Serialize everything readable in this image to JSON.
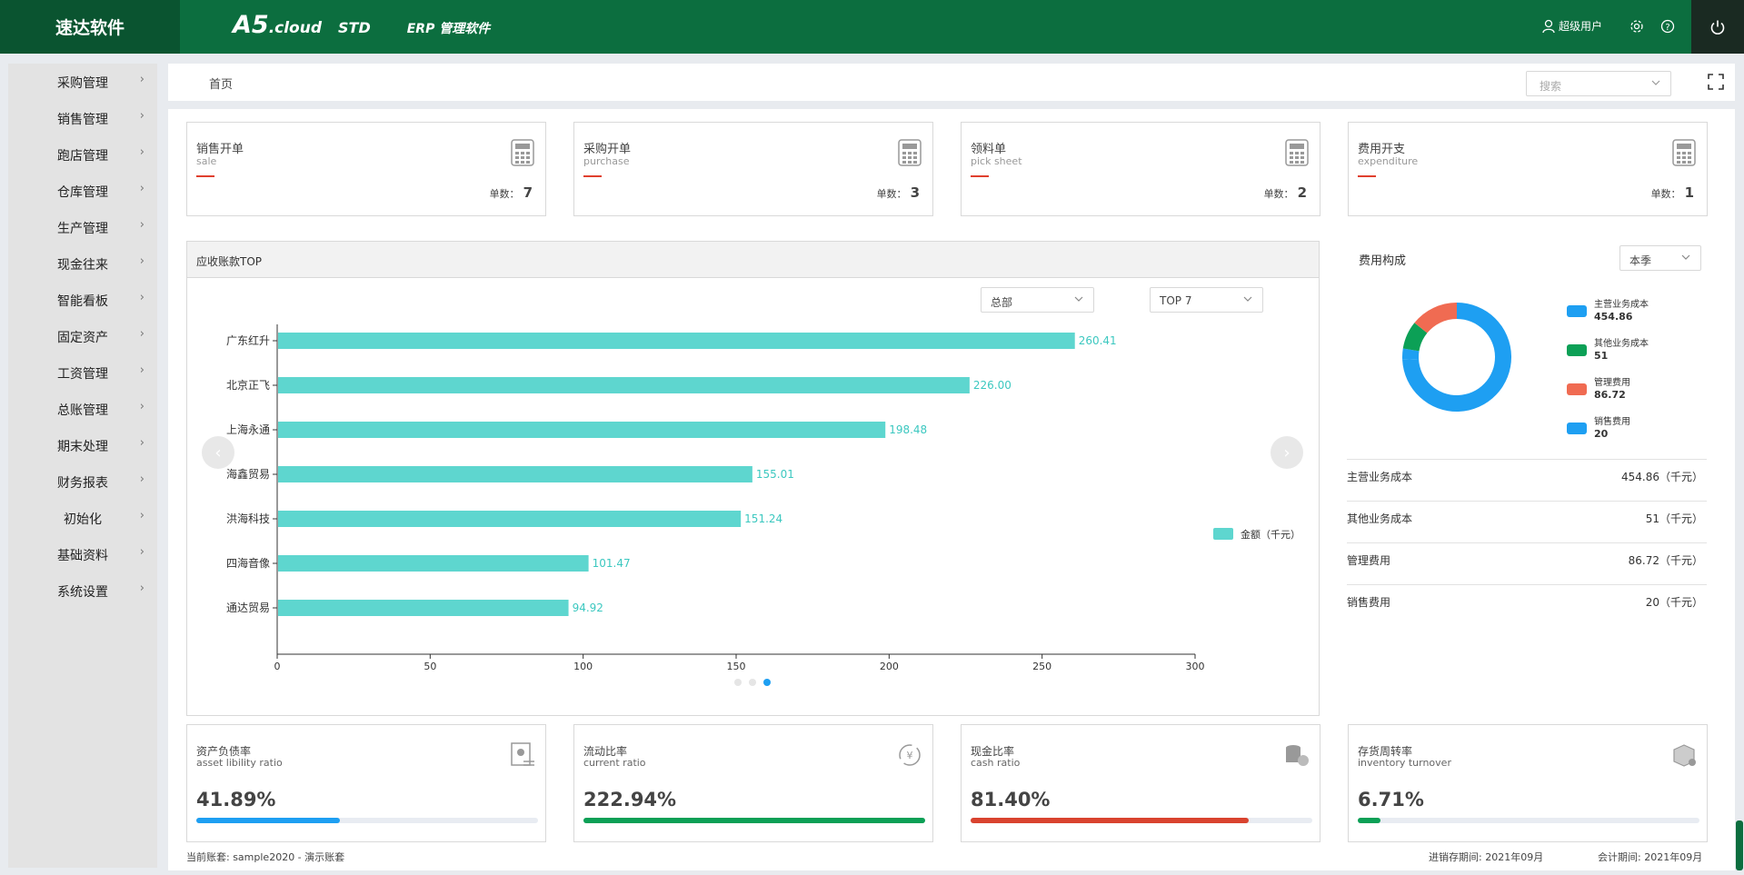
{
  "header": {
    "logo": "速达软件",
    "brand_a5": "A5",
    "brand_cloud": ".cloud",
    "brand_std": "STD",
    "brand_erp": "ERP 管理软件",
    "user": "超级用户"
  },
  "sidebar": {
    "items": [
      {
        "label": "采购管理"
      },
      {
        "label": "销售管理"
      },
      {
        "label": "跑店管理"
      },
      {
        "label": "仓库管理"
      },
      {
        "label": "生产管理"
      },
      {
        "label": "现金往来"
      },
      {
        "label": "智能看板"
      },
      {
        "label": "固定资产"
      },
      {
        "label": "工资管理"
      },
      {
        "label": "总账管理"
      },
      {
        "label": "期末处理"
      },
      {
        "label": "财务报表"
      },
      {
        "label": "初始化"
      },
      {
        "label": "基础资料"
      },
      {
        "label": "系统设置"
      }
    ]
  },
  "breadcrumb": {
    "home": "首页"
  },
  "search": {
    "placeholder": "搜索"
  },
  "stats": [
    {
      "title": "销售开单",
      "subtitle": "sale",
      "count_label": "单数：",
      "count": "7"
    },
    {
      "title": "采购开单",
      "subtitle": "purchase",
      "count_label": "单数：",
      "count": "3"
    },
    {
      "title": "领料单",
      "subtitle": "pick sheet",
      "count_label": "单数：",
      "count": "2"
    },
    {
      "title": "费用开支",
      "subtitle": "expenditure",
      "count_label": "单数：",
      "count": "1"
    }
  ],
  "receivables": {
    "title": "应收账款TOP",
    "filter_scope": "总部",
    "filter_top": "TOP 7",
    "legend": "金额（千元）"
  },
  "chart_data": {
    "type": "bar",
    "orientation": "horizontal",
    "categories": [
      "广东红升",
      "北京正飞",
      "上海永通",
      "海鑫贸易",
      "洪海科技",
      "四海音像",
      "通达贸易"
    ],
    "series": [
      {
        "name": "金额（千元）",
        "values": [
          260.41,
          226.0,
          198.48,
          155.01,
          151.24,
          101.47,
          94.92
        ]
      }
    ],
    "value_labels": [
      "260.41",
      "226.00",
      "198.48",
      "155.01",
      "151.24",
      "101.47",
      "94.92"
    ],
    "xticks": [
      "0",
      "50",
      "100",
      "150",
      "200",
      "250",
      "300"
    ],
    "xlim": [
      0,
      300
    ],
    "color": "#5ed6cf",
    "legend_position": "right"
  },
  "cost": {
    "title": "费用构成",
    "period": "本季",
    "items": [
      {
        "name": "主营业务成本",
        "value": "454.86",
        "row_value": "454.86（千元）",
        "num": 454.86,
        "color": "#1e9ff2"
      },
      {
        "name": "其他业务成本",
        "value": "51",
        "row_value": "51（千元）",
        "num": 51,
        "color": "#0ca056"
      },
      {
        "name": "管理费用",
        "value": "86.72",
        "row_value": "86.72（千元）",
        "num": 86.72,
        "color": "#f06b52"
      },
      {
        "name": "销售费用",
        "value": "20",
        "row_value": "20（千元）",
        "num": 20,
        "color": "#1e9ff2"
      }
    ]
  },
  "kpis": [
    {
      "title": "资产负债率",
      "subtitle": "asset libility ratio",
      "value": "41.89%",
      "fill": 0.42,
      "color": "#1e9ff2"
    },
    {
      "title": "流动比率",
      "subtitle": "current ratio",
      "value": "222.94%",
      "fill": 1.0,
      "color": "#0ca056"
    },
    {
      "title": "现金比率",
      "subtitle": "cash ratio",
      "value": "81.40%",
      "fill": 0.814,
      "color": "#d9432f"
    },
    {
      "title": "存货周转率",
      "subtitle": "inventory turnover",
      "value": "6.71%",
      "fill": 0.067,
      "color": "#0ca056"
    }
  ],
  "footer": {
    "account": "当前账套: sample2020 - 演示账套",
    "inventory_period": "进销存期间: 2021年09月",
    "accounting_period": "会计期间: 2021年09月"
  }
}
